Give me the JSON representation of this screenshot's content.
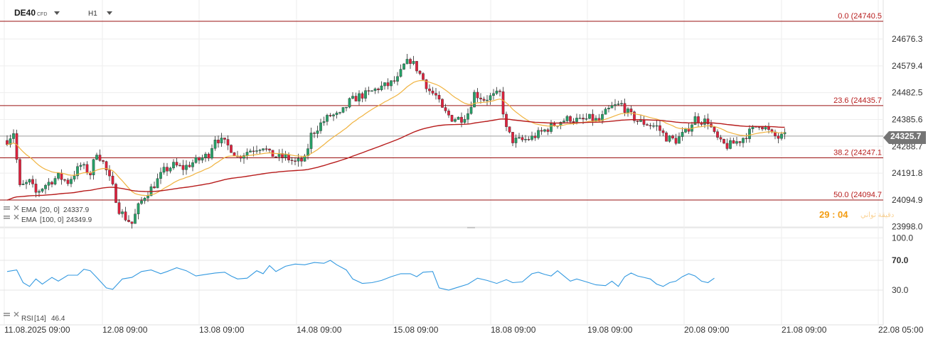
{
  "header": {
    "symbol": "DE40",
    "instrument_type": "CFD",
    "timeframe": "H1",
    "timer_text": "29 : 04",
    "timer_suffix": "دقيقة ثواني"
  },
  "colors": {
    "bull": "#26a269",
    "bear": "#e0213d",
    "ema20": "#f0b340",
    "ema100": "#b71c1c",
    "fib": "#9a1010",
    "rsi": "#3399e0",
    "price_tag": "#757575",
    "timer": "#f39c12"
  },
  "chart_data": [
    {
      "type": "candlestick",
      "title": "DE40",
      "y_ticks": [
        24676.3,
        24579.4,
        24482.5,
        24385.6,
        24288.7,
        24191.8,
        24094.9,
        23998.0
      ],
      "ylim": [
        23998.0,
        24750.0
      ],
      "x_ticks": [
        "11.08.2025 09:00",
        "12.08 09:00",
        "13.08 09:00",
        "14.08 09:00",
        "15.08 09:00",
        "18.08 09:00",
        "19.08 09:00",
        "20.08 09:00",
        "21.08 09:00",
        "22.08 05:00"
      ],
      "current_price": 24325.7,
      "fib_levels": [
        {
          "label": "0.0 (24740.5",
          "value": 24740.5
        },
        {
          "label": "23.6 (24435.7",
          "value": 24435.7
        },
        {
          "label": "38.2 (24247.1",
          "value": 24247.1
        },
        {
          "label": "50.0 (24094.7",
          "value": 24094.7
        }
      ],
      "legend": [
        {
          "name": "EMA",
          "params": "[20, 0]",
          "value": "24337.9"
        },
        {
          "name": "EMA",
          "params": "[100, 0]",
          "value": "24349.9"
        }
      ]
    },
    {
      "type": "line",
      "title": "RSI",
      "y_ticks": [
        100.0,
        70.0,
        30.0
      ],
      "ylim": [
        0,
        100
      ],
      "legend": {
        "name": "RSI",
        "params": "[14]",
        "value": "46.4"
      },
      "anchors": [
        [
          0,
          55
        ],
        [
          3,
          57
        ],
        [
          5,
          40
        ],
        [
          7,
          35
        ],
        [
          9,
          45
        ],
        [
          11,
          38
        ],
        [
          14,
          47
        ],
        [
          16,
          42
        ],
        [
          19,
          50
        ],
        [
          22,
          50
        ],
        [
          24,
          58
        ],
        [
          26,
          56
        ],
        [
          28,
          47
        ],
        [
          31,
          33
        ],
        [
          33,
          31
        ],
        [
          36,
          45
        ],
        [
          39,
          47
        ],
        [
          42,
          55
        ],
        [
          45,
          57
        ],
        [
          48,
          52
        ],
        [
          50,
          55
        ],
        [
          53,
          60
        ],
        [
          56,
          56
        ],
        [
          59,
          49
        ],
        [
          62,
          51
        ],
        [
          65,
          53
        ],
        [
          68,
          54
        ],
        [
          70,
          49
        ],
        [
          72,
          45
        ],
        [
          75,
          46
        ],
        [
          78,
          56
        ],
        [
          80,
          52
        ],
        [
          82,
          63
        ],
        [
          84,
          55
        ],
        [
          87,
          62
        ],
        [
          90,
          65
        ],
        [
          93,
          64
        ],
        [
          96,
          67
        ],
        [
          99,
          66
        ],
        [
          101,
          70
        ],
        [
          103,
          64
        ],
        [
          106,
          57
        ],
        [
          108,
          45
        ],
        [
          111,
          39
        ],
        [
          114,
          40
        ],
        [
          117,
          43
        ],
        [
          120,
          48
        ],
        [
          123,
          52
        ],
        [
          126,
          52
        ],
        [
          128,
          48
        ],
        [
          130,
          54
        ],
        [
          133,
          55
        ],
        [
          135,
          33
        ],
        [
          138,
          30
        ],
        [
          141,
          34
        ],
        [
          144,
          38
        ],
        [
          147,
          46
        ],
        [
          150,
          43
        ],
        [
          153,
          39
        ],
        [
          156,
          44
        ],
        [
          158,
          40
        ],
        [
          161,
          41
        ],
        [
          164,
          52
        ],
        [
          166,
          54
        ],
        [
          168,
          51
        ],
        [
          170,
          49
        ],
        [
          172,
          56
        ],
        [
          174,
          49
        ],
        [
          176,
          42
        ],
        [
          178,
          45
        ],
        [
          181,
          41
        ],
        [
          184,
          37
        ],
        [
          187,
          36
        ],
        [
          189,
          42
        ],
        [
          191,
          35
        ],
        [
          193,
          48
        ],
        [
          195,
          53
        ],
        [
          197,
          49
        ],
        [
          199,
          47
        ],
        [
          201,
          45
        ],
        [
          203,
          38
        ],
        [
          205,
          35
        ],
        [
          207,
          40
        ],
        [
          209,
          42
        ],
        [
          211,
          48
        ],
        [
          213,
          52
        ],
        [
          215,
          49
        ],
        [
          217,
          42
        ],
        [
          219,
          40
        ],
        [
          221,
          46
        ]
      ]
    }
  ]
}
